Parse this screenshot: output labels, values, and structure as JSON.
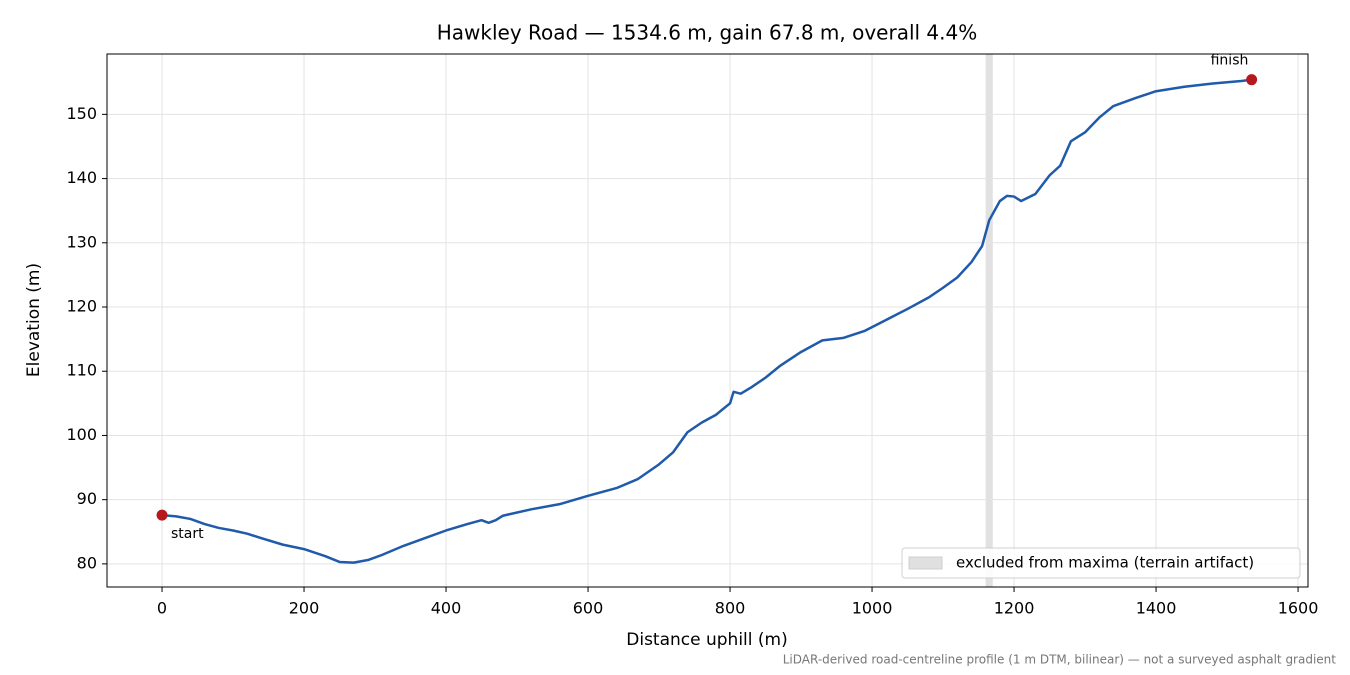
{
  "chart_data": {
    "type": "line",
    "title": "Hawkley Road — 1534.6 m, gain 67.8 m, overall 4.4%",
    "x_label": "Distance uphill (m)",
    "y_label": "Elevation (m)",
    "footnote": "LiDAR-derived road-centreline profile (1 m DTM, bilinear) — not a surveyed asphalt gradient",
    "x": [
      0,
      20,
      40,
      60,
      80,
      100,
      120,
      140,
      170,
      200,
      230,
      250,
      270,
      290,
      310,
      340,
      370,
      400,
      430,
      450,
      460,
      470,
      480,
      520,
      560,
      600,
      640,
      670,
      700,
      720,
      740,
      760,
      780,
      800,
      805,
      815,
      830,
      850,
      870,
      900,
      930,
      960,
      990,
      1020,
      1050,
      1080,
      1100,
      1120,
      1140,
      1155,
      1165,
      1180,
      1190,
      1200,
      1210,
      1230,
      1250,
      1265,
      1280,
      1300,
      1320,
      1340,
      1370,
      1400,
      1440,
      1480,
      1520,
      1534.6
    ],
    "series": [
      {
        "name": "elevation",
        "color": "#1f5aab",
        "values": [
          87.6,
          87.4,
          87.0,
          86.2,
          85.6,
          85.2,
          84.7,
          84.0,
          83.0,
          82.3,
          81.2,
          80.3,
          80.2,
          80.6,
          81.4,
          82.8,
          84.0,
          85.2,
          86.2,
          86.8,
          86.4,
          86.8,
          87.5,
          88.5,
          89.3,
          90.6,
          91.8,
          93.2,
          95.5,
          97.4,
          100.5,
          102.0,
          103.2,
          105.0,
          106.8,
          106.5,
          107.5,
          109.0,
          110.8,
          113.0,
          114.8,
          115.2,
          116.3,
          118.0,
          119.7,
          121.5,
          123.0,
          124.6,
          127.0,
          129.5,
          133.5,
          136.5,
          137.3,
          137.2,
          136.5,
          137.6,
          140.5,
          142.0,
          145.8,
          147.2,
          149.5,
          151.3,
          152.5,
          153.6,
          154.3,
          154.8,
          155.2,
          155.4
        ]
      }
    ],
    "markers": [
      {
        "label": "start",
        "x": 0,
        "y": 87.6
      },
      {
        "label": "finish",
        "x": 1534.6,
        "y": 155.4
      }
    ],
    "marker_color": "#b5191e",
    "shaded_regions": [
      {
        "name": "excluded from maxima (terrain artifact)",
        "x": [
          1160,
          1170
        ],
        "color": "#d4d4d4"
      }
    ],
    "xlim": [
      -77.5,
      1614
    ],
    "ylim": [
      76.4,
      159.4
    ],
    "xticks": [
      0,
      200,
      400,
      600,
      800,
      1000,
      1200,
      1400,
      1600
    ],
    "yticks": [
      80,
      90,
      100,
      110,
      120,
      130,
      140,
      150
    ],
    "grid": true,
    "legend": "lower right"
  }
}
